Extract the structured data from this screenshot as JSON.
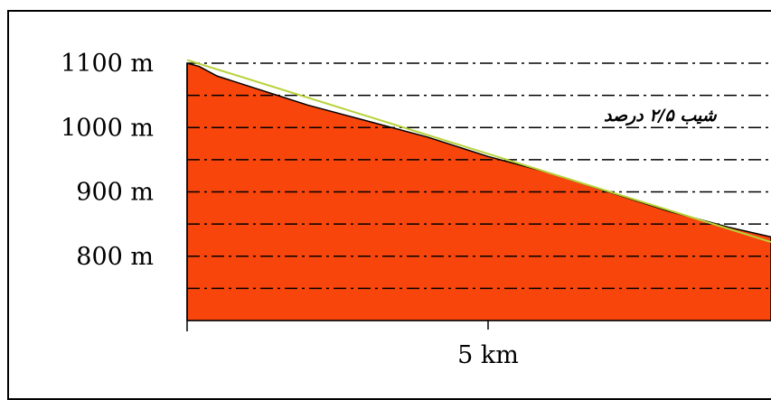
{
  "chart_data": {
    "type": "area",
    "title": "",
    "xlabel": "",
    "ylabel": "",
    "x_ticks": [
      {
        "value": 5,
        "label": "5 km"
      }
    ],
    "y_ticks": [
      {
        "value": 1100,
        "label": "1100 m"
      },
      {
        "value": 1000,
        "label": "1000 m"
      },
      {
        "value": 900,
        "label": "900 m"
      },
      {
        "value": 800,
        "label": "800 m"
      }
    ],
    "xlim": [
      0,
      9.7
    ],
    "ylim": [
      700,
      1100
    ],
    "grid": "dash-dot horizontal every 50 m",
    "series": [
      {
        "type": "area",
        "color": "#f7450c",
        "x": [
          0,
          0.2,
          0.5,
          1.0,
          1.5,
          2.0,
          3.0,
          4.0,
          5.0,
          6.0,
          7.0,
          8.0,
          9.0,
          9.7
        ],
        "y": [
          1100,
          1095,
          1080,
          1065,
          1050,
          1035,
          1010,
          985,
          955,
          930,
          900,
          870,
          845,
          830
        ]
      },
      {
        "type": "line",
        "color": "#b8d23a",
        "x": [
          0,
          9.7
        ],
        "y": [
          1105,
          822
        ]
      }
    ],
    "annotation": "شیب ۲/۵ درصد"
  }
}
